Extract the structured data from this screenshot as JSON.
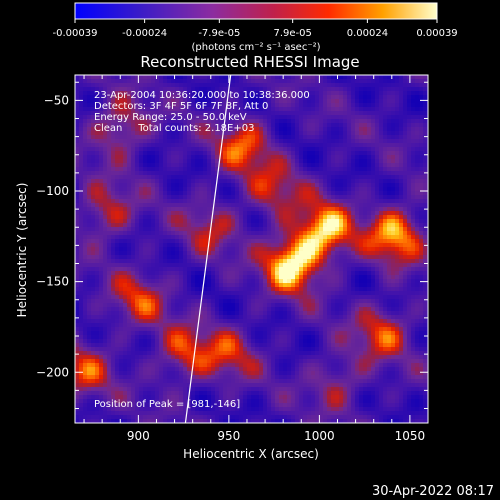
{
  "chart_data": {
    "type": "heatmap",
    "title": "Reconstructed RHESSI Image",
    "xlabel": "Heliocentric X (arcsec)",
    "ylabel": "Heliocentric Y (arcsec)",
    "xlim": [
      865,
      1060
    ],
    "ylim": [
      -228,
      -36
    ],
    "xticks": [
      900,
      950,
      1000,
      1050
    ],
    "yticks": [
      -50,
      -100,
      -150,
      -200
    ],
    "colorbar": {
      "range": [
        -0.00039,
        0.00039
      ],
      "tick_values": [
        -0.00039,
        -0.00024,
        -7.9e-05,
        7.9e-05,
        0.00024,
        0.00039
      ],
      "tick_labels": [
        "-0.00039",
        "-0.00024",
        "-7.9e-05",
        "7.9e-05",
        "0.00024",
        "0.00039"
      ],
      "unit_label": "(photons cm⁻² s⁻¹ asec⁻²)"
    },
    "annotations": [
      "23-Apr-2004 10:36:20.000 to 10:38:36.000",
      "Detectors: 3F 4F 5F 6F 7F 8F, Att 0",
      "Energy Range: 25.0 - 50.0 keV",
      "Clean     Total counts: 2.18E+03"
    ],
    "peak_label": "Position of Peak = [981,-146]",
    "peak": [
      981,
      -146
    ],
    "limb_line": [
      [
        926,
        -228
      ],
      [
        951,
        -36
      ]
    ],
    "blobs": [
      {
        "x": 985,
        "y": -140,
        "v": 1.0
      },
      {
        "x": 1003,
        "y": -122,
        "v": 0.85
      },
      {
        "x": 1042,
        "y": -124,
        "v": 0.8
      },
      {
        "x": 1035,
        "y": -178,
        "v": 0.55
      },
      {
        "x": 958,
        "y": -75,
        "v": 0.6
      },
      {
        "x": 975,
        "y": -100,
        "v": 0.45
      },
      {
        "x": 890,
        "y": -65,
        "v": 0.55
      },
      {
        "x": 882,
        "y": -112,
        "v": 0.5
      },
      {
        "x": 900,
        "y": -160,
        "v": 0.5
      },
      {
        "x": 925,
        "y": -190,
        "v": 0.55
      },
      {
        "x": 950,
        "y": -190,
        "v": 0.45
      },
      {
        "x": 870,
        "y": -200,
        "v": 0.5
      },
      {
        "x": 940,
        "y": -120,
        "v": 0.4
      },
      {
        "x": 1010,
        "y": -205,
        "v": 0.4
      }
    ]
  },
  "footer": {
    "date": "30-Apr-2022 08:17"
  }
}
